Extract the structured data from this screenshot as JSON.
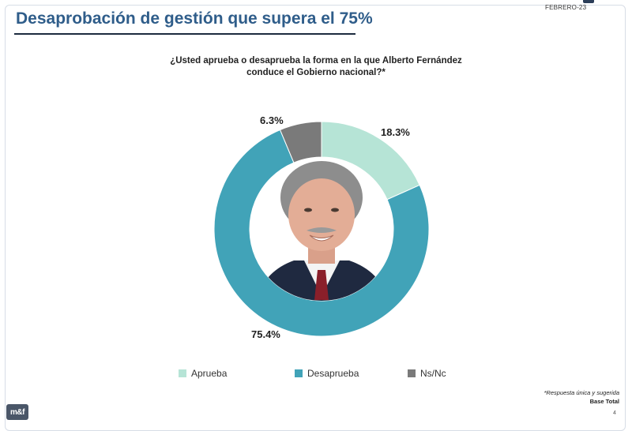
{
  "header": {
    "title": "Desaprobación de gestión que supera el 75%",
    "date": "FEBRERO-23"
  },
  "question": {
    "line1": "¿Usted aprueba o desaprueba la forma en la que Alberto Fernández",
    "line2": "conduce el Gobierno nacional?*"
  },
  "chart_data": {
    "type": "pie",
    "variant": "donut",
    "categories": [
      "Aprueba",
      "Desaprueba",
      "Ns/Nc"
    ],
    "values": [
      18.3,
      75.4,
      6.3
    ],
    "labels": [
      "18.3%",
      "75.4%",
      "6.3%"
    ],
    "colors": [
      "#b6e4d6",
      "#41a3b8",
      "#7a7a7a"
    ],
    "legend_position": "bottom",
    "center_image": "portrait-photo"
  },
  "legend": [
    {
      "label": "Aprueba",
      "color": "#b6e4d6"
    },
    {
      "label": "Desaprueba",
      "color": "#41a3b8"
    },
    {
      "label": "Ns/Nc",
      "color": "#7a7a7a"
    }
  ],
  "footnote": {
    "line1": "*Respuesta única y sugerida",
    "line2": "Base Total"
  },
  "logo_text": "m&f",
  "page_number": "4"
}
